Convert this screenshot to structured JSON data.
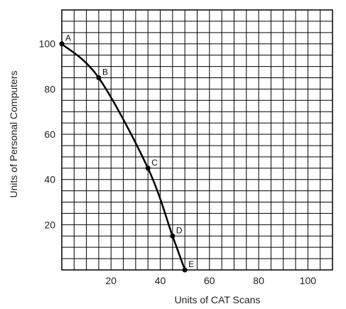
{
  "chart_data": {
    "type": "line",
    "title": "",
    "xlabel": "Units of CAT Scans",
    "ylabel": "Units of Personal Computers",
    "xlim": [
      0,
      110
    ],
    "ylim": [
      0,
      115
    ],
    "x_ticks": [
      20,
      40,
      60,
      80,
      100
    ],
    "y_ticks": [
      20,
      40,
      60,
      80,
      100
    ],
    "grid": true,
    "series": [
      {
        "points": [
          {
            "label": "A",
            "x": 0,
            "y": 100
          },
          {
            "label": "B",
            "x": 15,
            "y": 85
          },
          {
            "label": "C",
            "x": 35,
            "y": 45
          },
          {
            "label": "D",
            "x": 45,
            "y": 15
          },
          {
            "label": "E",
            "x": 50,
            "y": 0
          }
        ]
      }
    ]
  }
}
